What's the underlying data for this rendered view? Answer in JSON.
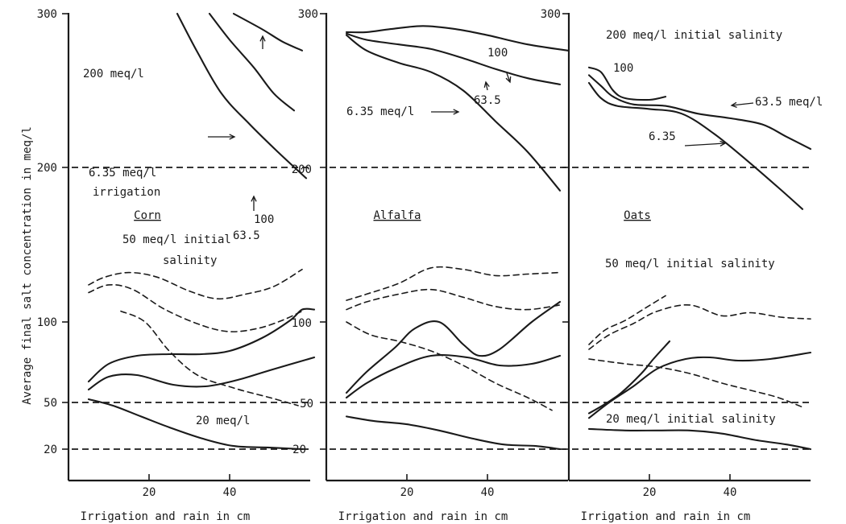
{
  "figure": {
    "ylabel": "Average final salt concentration in meq/l",
    "y_ticks": [
      "300",
      "200",
      "100",
      "50",
      "20"
    ],
    "x_ticks": [
      "20",
      "40"
    ]
  },
  "chart_data": [
    {
      "type": "line",
      "title": "Corn",
      "xlabel": "Irrigation and rain in cm",
      "ylabel": "Average final salt concentration in meq/l",
      "xlim": [
        0,
        60
      ],
      "y_ticks": [
        300,
        200,
        100,
        50,
        20
      ],
      "reference_lines": [
        200,
        50,
        20
      ],
      "annotations": [
        "200 meq/l",
        "6.35 meq/l",
        "irrigation",
        "63.5",
        "100",
        "50 meq/l initial",
        "salinity",
        "20 meq/l"
      ],
      "ref_labels": [],
      "series": [
        {
          "style": "solid",
          "points": [
            [
              27,
              300
            ],
            [
              32,
              275
            ],
            [
              38,
              248
            ],
            [
              45,
              228
            ],
            [
              52,
              210
            ],
            [
              59,
              193
            ]
          ]
        },
        {
          "style": "solid",
          "points": [
            [
              35,
              300
            ],
            [
              40,
              283
            ],
            [
              46,
              265
            ],
            [
              51,
              248
            ],
            [
              56,
              237
            ]
          ]
        },
        {
          "style": "solid",
          "points": [
            [
              41,
              300
            ],
            [
              48,
              290
            ],
            [
              53,
              282
            ],
            [
              58,
              276
            ]
          ]
        },
        {
          "style": "dashed",
          "points": [
            [
              5,
              124
            ],
            [
              9,
              129
            ],
            [
              15,
              132
            ],
            [
              22,
              129
            ],
            [
              30,
              120
            ],
            [
              37,
              115
            ],
            [
              44,
              118
            ],
            [
              51,
              123
            ],
            [
              58,
              134
            ]
          ]
        },
        {
          "style": "dashed",
          "points": [
            [
              5,
              119
            ],
            [
              10,
              124
            ],
            [
              16,
              121
            ],
            [
              24,
              108
            ],
            [
              33,
              98
            ],
            [
              40,
              94
            ],
            [
              47,
              96
            ],
            [
              53,
              101
            ],
            [
              58,
              107
            ]
          ]
        },
        {
          "style": "dashed",
          "points": [
            [
              13,
              107
            ],
            [
              19,
              100
            ],
            [
              25,
              82
            ],
            [
              32,
              67
            ],
            [
              41,
              59
            ],
            [
              50,
              53
            ],
            [
              57,
              48
            ]
          ]
        },
        {
          "style": "solid",
          "points": [
            [
              5,
              63
            ],
            [
              10,
              74
            ],
            [
              17,
              79
            ],
            [
              25,
              80
            ],
            [
              33,
              80
            ],
            [
              40,
              82
            ],
            [
              48,
              90
            ],
            [
              55,
              101
            ],
            [
              58,
              108
            ],
            [
              61,
              108
            ]
          ]
        },
        {
          "style": "solid",
          "points": [
            [
              5,
              58
            ],
            [
              10,
              66
            ],
            [
              17,
              67
            ],
            [
              26,
              61
            ],
            [
              34,
              60
            ],
            [
              42,
              64
            ],
            [
              50,
              70
            ],
            [
              61,
              78
            ]
          ]
        },
        {
          "style": "solid",
          "points": [
            [
              5,
              52
            ],
            [
              11,
              48
            ],
            [
              18,
              41
            ],
            [
              25,
              34
            ],
            [
              33,
              27
            ],
            [
              41,
              22
            ],
            [
              50,
              21
            ],
            [
              58,
              20
            ]
          ]
        }
      ]
    },
    {
      "type": "line",
      "title": "Alfalfa",
      "xlabel": "Irrigation and rain in cm",
      "ylabel": "Average final salt concentration in meq/l",
      "xlim": [
        0,
        60
      ],
      "y_ticks": [
        300,
        200,
        100,
        50,
        20
      ],
      "reference_lines": [
        200,
        50,
        20
      ],
      "annotations": [
        "100",
        "63.5",
        "6.35 meq/l"
      ],
      "ref_labels": [
        "200",
        "100",
        "50",
        "20"
      ],
      "series": [
        {
          "style": "solid",
          "points": [
            [
              5,
              288
            ],
            [
              10,
              288
            ],
            [
              16,
              290
            ],
            [
              24,
              292
            ],
            [
              32,
              290
            ],
            [
              40,
              286
            ],
            [
              50,
              280
            ],
            [
              60,
              276
            ]
          ]
        },
        {
          "style": "solid",
          "points": [
            [
              5,
              287
            ],
            [
              10,
              283
            ],
            [
              18,
              280
            ],
            [
              26,
              277
            ],
            [
              34,
              271
            ],
            [
              42,
              264
            ],
            [
              50,
              258
            ],
            [
              58,
              254
            ]
          ]
        },
        {
          "style": "solid",
          "points": [
            [
              5,
              286
            ],
            [
              10,
              276
            ],
            [
              18,
              268
            ],
            [
              26,
              262
            ],
            [
              34,
              250
            ],
            [
              42,
              230
            ],
            [
              50,
              210
            ],
            [
              58,
              185
            ]
          ]
        },
        {
          "style": "dashed",
          "points": [
            [
              5,
              114
            ],
            [
              10,
              118
            ],
            [
              18,
              125
            ],
            [
              26,
              135
            ],
            [
              34,
              134
            ],
            [
              42,
              130
            ],
            [
              50,
              131
            ],
            [
              58,
              132
            ]
          ]
        },
        {
          "style": "dashed",
          "points": [
            [
              5,
              108
            ],
            [
              10,
              113
            ],
            [
              18,
              118
            ],
            [
              26,
              121
            ],
            [
              34,
              116
            ],
            [
              42,
              110
            ],
            [
              50,
              108
            ],
            [
              58,
              111
            ]
          ]
        },
        {
          "style": "dashed",
          "points": [
            [
              5,
              100
            ],
            [
              11,
              92
            ],
            [
              18,
              88
            ],
            [
              26,
              82
            ],
            [
              34,
              73
            ],
            [
              42,
              62
            ],
            [
              50,
              53
            ],
            [
              56,
              45
            ]
          ]
        },
        {
          "style": "solid",
          "points": [
            [
              5,
              56
            ],
            [
              10,
              69
            ],
            [
              17,
              84
            ],
            [
              22,
              96
            ],
            [
              28,
              100
            ],
            [
              34,
              86
            ],
            [
              38,
              79
            ],
            [
              43,
              83
            ],
            [
              51,
              100
            ],
            [
              58,
              113
            ]
          ]
        },
        {
          "style": "solid",
          "points": [
            [
              5,
              53
            ],
            [
              10,
              62
            ],
            [
              17,
              71
            ],
            [
              26,
              79
            ],
            [
              35,
              78
            ],
            [
              43,
              73
            ],
            [
              51,
              74
            ],
            [
              58,
              79
            ]
          ]
        },
        {
          "style": "solid",
          "points": [
            [
              5,
              41
            ],
            [
              12,
              38
            ],
            [
              20,
              36
            ],
            [
              28,
              32
            ],
            [
              36,
              27
            ],
            [
              44,
              23
            ],
            [
              52,
              22
            ],
            [
              58,
              20
            ]
          ]
        }
      ]
    },
    {
      "type": "line",
      "title": "Oats",
      "xlabel": "Irrigation and rain in cm",
      "ylabel": "Average final salt concentration in meq/l",
      "xlim": [
        0,
        60
      ],
      "y_ticks": [
        300,
        200,
        100,
        50,
        20
      ],
      "reference_lines": [
        200,
        50,
        20
      ],
      "annotations": [
        "200 meq/l initial salinity",
        "100",
        "63.5 meq/l",
        "6.35",
        "50 meq/l initial salinity",
        "20 meq/l initial salinity"
      ],
      "ref_labels": [],
      "series": [
        {
          "style": "solid",
          "points": [
            [
              5,
              265
            ],
            [
              8,
              262
            ],
            [
              11,
              250
            ],
            [
              14,
              245
            ],
            [
              20,
              244
            ],
            [
              24,
              246
            ]
          ]
        },
        {
          "style": "solid",
          "points": [
            [
              5,
              260
            ],
            [
              8,
              253
            ],
            [
              11,
              246
            ],
            [
              16,
              241
            ],
            [
              24,
              240
            ],
            [
              32,
              235
            ],
            [
              40,
              232
            ],
            [
              48,
              228
            ],
            [
              54,
              220
            ],
            [
              60,
              212
            ]
          ]
        },
        {
          "style": "solid",
          "points": [
            [
              5,
              255
            ],
            [
              8,
              245
            ],
            [
              12,
              240
            ],
            [
              20,
              238
            ],
            [
              28,
              235
            ],
            [
              36,
              222
            ],
            [
              44,
              205
            ],
            [
              52,
              187
            ],
            [
              58,
              173
            ]
          ]
        },
        {
          "style": "dashed",
          "points": [
            [
              5,
              86
            ],
            [
              9,
              95
            ],
            [
              14,
              101
            ],
            [
              19,
              109
            ],
            [
              24,
              117
            ]
          ]
        },
        {
          "style": "dashed",
          "points": [
            [
              5,
              83
            ],
            [
              10,
              92
            ],
            [
              16,
              99
            ],
            [
              22,
              107
            ],
            [
              30,
              111
            ],
            [
              38,
              104
            ],
            [
              45,
              106
            ],
            [
              53,
              103
            ],
            [
              60,
              102
            ]
          ]
        },
        {
          "style": "dashed",
          "points": [
            [
              5,
              77
            ],
            [
              14,
              74
            ],
            [
              22,
              72
            ],
            [
              30,
              68
            ],
            [
              38,
              62
            ],
            [
              46,
              57
            ],
            [
              52,
              53
            ],
            [
              58,
              47
            ]
          ]
        },
        {
          "style": "solid",
          "points": [
            [
              5,
              43
            ],
            [
              9,
              49
            ],
            [
              13,
              56
            ],
            [
              18,
              68
            ],
            [
              21,
              77
            ],
            [
              25,
              88
            ]
          ]
        },
        {
          "style": "solid",
          "points": [
            [
              5,
              40
            ],
            [
              10,
              50
            ],
            [
              16,
              60
            ],
            [
              22,
              71
            ],
            [
              29,
              77
            ],
            [
              35,
              78
            ],
            [
              42,
              76
            ],
            [
              50,
              77
            ],
            [
              60,
              81
            ]
          ]
        },
        {
          "style": "solid",
          "points": [
            [
              5,
              33
            ],
            [
              14,
              32
            ],
            [
              22,
              32
            ],
            [
              30,
              32
            ],
            [
              38,
              30
            ],
            [
              46,
              26
            ],
            [
              54,
              23
            ],
            [
              60,
              20
            ]
          ]
        }
      ]
    }
  ]
}
